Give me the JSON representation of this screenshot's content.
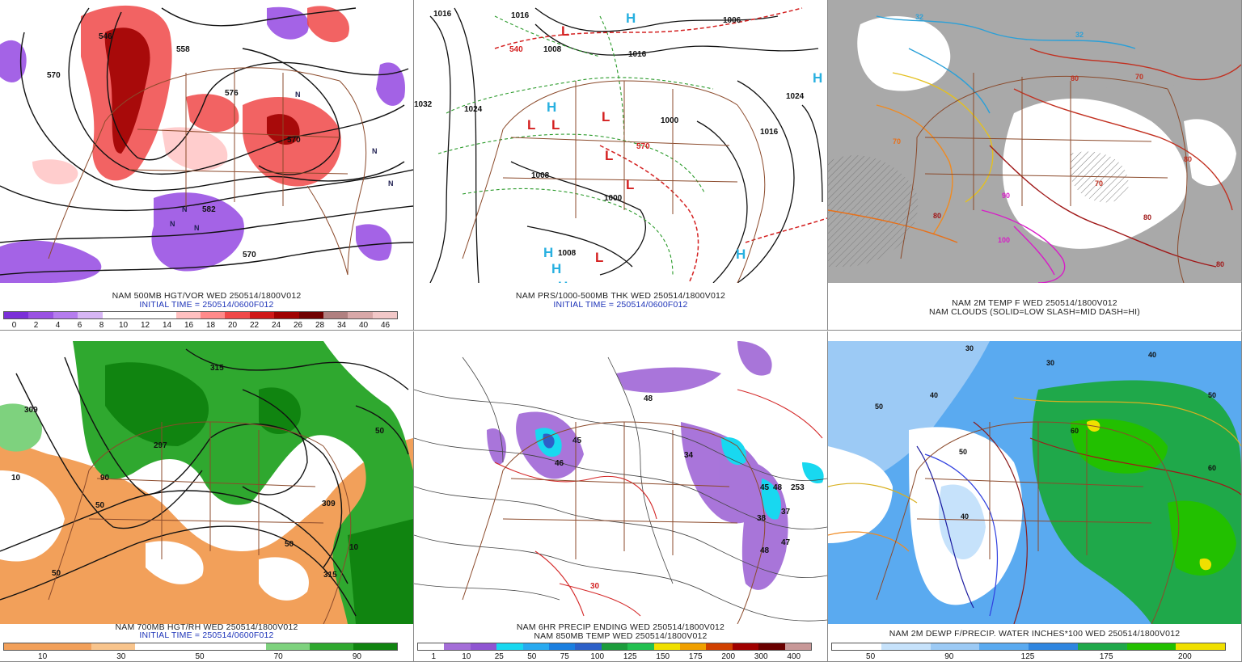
{
  "panels": [
    {
      "id": "p1",
      "caption1": "NAM 500MB HGT/VOR WED 250514/1800V012",
      "caption2": "INITIAL TIME = 250514/0600F012",
      "colorbar": {
        "colors": [
          "#7b2fd8",
          "#9a52e3",
          "#b57cee",
          "#d7b6f5",
          "#ffffff",
          "#ffffff",
          "#ffffff",
          "#ffc0c0",
          "#ff8a8a",
          "#f04848",
          "#d01818",
          "#a00000",
          "#700000",
          "#b08080",
          "#d8a8a8",
          "#f2c8c8"
        ],
        "labels": [
          "0",
          "2",
          "4",
          "6",
          "8",
          "10",
          "12",
          "14",
          "16",
          "18",
          "20",
          "22",
          "24",
          "26",
          "28",
          "34",
          "40",
          "46"
        ]
      },
      "contour_labels": [
        "570",
        "558",
        "576",
        "570",
        "570",
        "582",
        "546"
      ],
      "symbols": [
        "N",
        "N",
        "N",
        "N",
        "N",
        "N"
      ]
    },
    {
      "id": "p2",
      "caption1": "NAM PRS/1000-500MB THK WED 250514/1800V012",
      "caption2": "INITIAL TIME = 250514/0600F012",
      "contour_labels": [
        "1016",
        "1016",
        "1008",
        "1016",
        "1024",
        "1016",
        "1024",
        "1008",
        "1000",
        "1008",
        "1000",
        "1006",
        "1032",
        "540",
        "570"
      ],
      "symbols": [
        "H",
        "H",
        "H",
        "H",
        "H",
        "H",
        "H",
        "H",
        "L",
        "L",
        "L",
        "L",
        "L",
        "L",
        "L"
      ]
    },
    {
      "id": "p3",
      "caption1": "NAM 2M TEMP F WED 250514/1800V012",
      "caption2": "NAM CLOUDS (SOLID=LOW SLASH=MID DASH=HI)",
      "contour_labels": [
        "32",
        "32",
        "70",
        "70",
        "80",
        "80",
        "90",
        "100",
        "70",
        "80",
        "80",
        "80"
      ]
    },
    {
      "id": "p4",
      "caption1": "NAM 700MB HGT/RH WED 250514/1800V012",
      "caption2": "INITIAL TIME = 250514/0600F012",
      "colorbar": {
        "colors": [
          "#f2a05a",
          "#f2a05a",
          "#f8c48c",
          "#ffffff",
          "#ffffff",
          "#ffffff",
          "#7ed27e",
          "#2fa82f",
          "#108410"
        ],
        "labels": [
          "10",
          "30",
          "50",
          "70",
          "90"
        ]
      },
      "contour_labels": [
        "309",
        "297",
        "315",
        "50",
        "10",
        "50",
        "90",
        "50",
        "309",
        "315",
        "10",
        "50"
      ]
    },
    {
      "id": "p5",
      "caption1": "NAM 6HR PRECIP ENDING WED 250514/1800V012",
      "caption2": "NAM 850MB TEMP WED 250514/1800V012",
      "colorbar": {
        "colors": [
          "#ffffff",
          "#a46ed8",
          "#8f55d2",
          "#18d8f0",
          "#28aaf0",
          "#1a7fe0",
          "#2d60c8",
          "#1c9c3c",
          "#22c050",
          "#f0e000",
          "#f0a000",
          "#d04000",
          "#a00000",
          "#6a0000",
          "#c89898"
        ],
        "labels": [
          "1",
          "10",
          "25",
          "50",
          "75",
          "100",
          "125",
          "150",
          "175",
          "200",
          "300",
          "400"
        ]
      },
      "contour_labels": [
        "48",
        "45",
        "46",
        "34",
        "45",
        "48",
        "253",
        "38",
        "37",
        "47",
        "48",
        "30"
      ]
    },
    {
      "id": "p6",
      "caption1": "NAM 2M DEWP F/PRECIP. WATER INCHES*100 WED 250514/1800V012",
      "colorbar": {
        "colors": [
          "#ffffff",
          "#c6e2fb",
          "#9ccaf5",
          "#5aaaf0",
          "#2f86e0",
          "#1fa84a",
          "#22c000",
          "#f0e000"
        ],
        "labels": [
          "50",
          "90",
          "125",
          "175",
          "200"
        ]
      },
      "contour_labels": [
        "30",
        "40",
        "50",
        "60",
        "30",
        "40",
        "50",
        "60",
        "50",
        "40"
      ]
    }
  ]
}
